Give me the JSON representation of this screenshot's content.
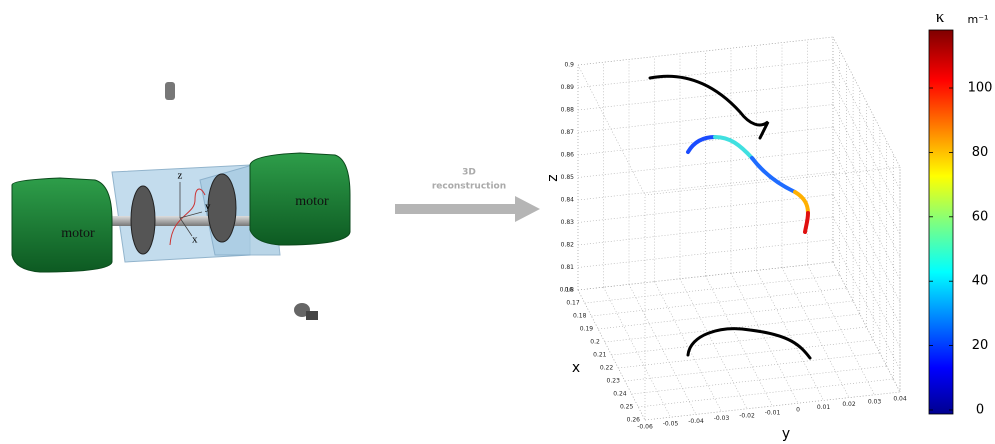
{
  "setup": {
    "motor_left": "motor",
    "motor_right": "motor",
    "axes": {
      "z": "z",
      "y": "y",
      "x": "x"
    }
  },
  "arrow": {
    "line1": "3D",
    "line2": "reconstruction"
  },
  "plot": {
    "axis_labels": {
      "z": "z",
      "x": "x",
      "y": "y"
    },
    "z_ticks": [
      0.8,
      0.81,
      0.82,
      0.83,
      0.84,
      0.85,
      0.86,
      0.87,
      0.88,
      0.89,
      0.9
    ],
    "x_ticks": [
      0.16,
      0.17,
      0.18,
      0.19,
      0.2,
      0.21,
      0.22,
      0.23,
      0.24,
      0.25,
      0.26
    ],
    "y_ticks": [
      -0.06,
      -0.05,
      -0.04,
      -0.03,
      -0.02,
      -0.01,
      0,
      0.01,
      0.02,
      0.03,
      0.04
    ]
  },
  "colorbar": {
    "symbol": "κ",
    "unit": "m⁻¹",
    "ticks": [
      0,
      20,
      40,
      60,
      80,
      100
    ]
  }
}
